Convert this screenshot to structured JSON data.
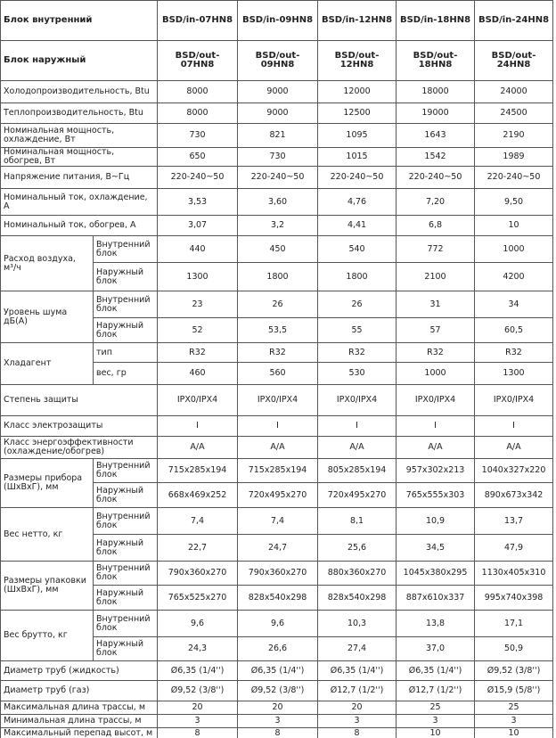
{
  "table": {
    "header": [
      {
        "label": "Блок внутренний",
        "models": [
          "BSD/in-07HN8",
          "BSD/in-09HN8",
          "BSD/in-12HN8",
          "BSD/in-18HN8",
          "BSD/in-24HN8"
        ]
      },
      {
        "label": "Блок наружный",
        "models": [
          "BSD/out-07HN8",
          "BSD/out-09HN8",
          "BSD/out-12HN8",
          "BSD/out-18HN8",
          "BSD/out-24HN8"
        ]
      }
    ],
    "rows": [
      {
        "label": "Холодопроизводительность,  Btu",
        "values": [
          "8000",
          "9000",
          "12000",
          "18000",
          "24000"
        ]
      },
      {
        "label": "Теплопроизводительность,  Btu",
        "values": [
          "8000",
          "9000",
          "12500",
          "19000",
          "24500"
        ]
      },
      {
        "label": "Номинальная мощность, охлаждение, Вт",
        "values": [
          "730",
          "821",
          "1095",
          "1643",
          "2190"
        ]
      },
      {
        "label": "Номинальная мощность, обогрев, Вт",
        "values": [
          "650",
          "730",
          "1015",
          "1542",
          "1989"
        ]
      },
      {
        "label": "Напряжение питания, В~Гц",
        "values": [
          "220-240~50",
          "220-240~50",
          "220-240~50",
          "220-240~50",
          "220-240~50"
        ]
      },
      {
        "label": "Номинальный ток, охлаждение, А",
        "values": [
          "3,53",
          "3,60",
          "4,76",
          "7,20",
          "9,50"
        ]
      },
      {
        "label": "Номинальный ток, обогрев, А",
        "values": [
          "3,07",
          "3,2",
          "4,41",
          "6,8",
          "10"
        ]
      },
      {
        "label": "Расход воздуха, м³/ч",
        "sub": [
          {
            "label": "Внутренний блок",
            "values": [
              "440",
              "450",
              "540",
              "772",
              "1000"
            ]
          },
          {
            "label": "Наружный блок",
            "values": [
              "1300",
              "1800",
              "1800",
              "2100",
              "4200"
            ]
          }
        ]
      },
      {
        "label": "Уровень шума дБ(А)",
        "sub": [
          {
            "label": "Внутренний блок",
            "values": [
              "23",
              "26",
              "26",
              "31",
              "34"
            ]
          },
          {
            "label": "Наружный блок",
            "values": [
              "52",
              "53,5",
              "55",
              "57",
              "60,5"
            ]
          }
        ]
      },
      {
        "label": "Хладагент",
        "sub": [
          {
            "label": "тип",
            "values": [
              "R32",
              "R32",
              "R32",
              "R32",
              "R32"
            ]
          },
          {
            "label": "вес, гр",
            "values": [
              "460",
              "560",
              "530",
              "1000",
              "1300"
            ]
          }
        ]
      },
      {
        "label": "Степень защиты",
        "values": [
          "IPX0/IPX4",
          "IPX0/IPX4",
          "IPX0/IPX4",
          "IPX0/IPX4",
          "IPX0/IPX4"
        ]
      },
      {
        "label": "Класс электрозащиты",
        "values": [
          "I",
          "I",
          "I",
          "I",
          "I"
        ]
      },
      {
        "label": "Класс энергоэффективности (охлаждение/обогрев)",
        "values": [
          "A/A",
          "A/A",
          "A/A",
          "A/A",
          "A/A"
        ]
      },
      {
        "label": "Размеры прибора (ШхВхГ), мм",
        "sub": [
          {
            "label": "Внутренний блок",
            "values": [
              "715x285x194",
              "715x285x194",
              "805x285x194",
              "957x302x213",
              "1040x327x220"
            ]
          },
          {
            "label": "Наружный блок",
            "values": [
              "668x469x252",
              "720x495x270",
              "720x495x270",
              "765x555x303",
              "890x673x342"
            ]
          }
        ]
      },
      {
        "label": "Вес нетто, кг",
        "sub": [
          {
            "label": "Внутренний блок",
            "values": [
              "7,4",
              "7,4",
              "8,1",
              "10,9",
              "13,7"
            ]
          },
          {
            "label": "Наружный блок",
            "values": [
              "22,7",
              "24,7",
              "25,6",
              "34,5",
              "47,9"
            ]
          }
        ]
      },
      {
        "label": "Размеры упаковки (ШхВхГ), мм",
        "sub": [
          {
            "label": "Внутренний блок",
            "values": [
              "790x360x270",
              "790x360x270",
              "880x360x270",
              "1045x380x295",
              "1130x405x310"
            ]
          },
          {
            "label": "Наружный блок",
            "values": [
              "765x525x270",
              "828x540x298",
              "828x540x298",
              "887x610x337",
              "995x740x398"
            ]
          }
        ]
      },
      {
        "label": "Вес брутто, кг",
        "sub": [
          {
            "label": "Внутренний блок",
            "values": [
              "9,6",
              "9,6",
              "10,3",
              "13,8",
              "17,1"
            ]
          },
          {
            "label": "Наружный блок",
            "values": [
              "24,3",
              "26,6",
              "27,4",
              "37,0",
              "50,9"
            ]
          }
        ]
      },
      {
        "label": "Диаметр труб (жидкость)",
        "values": [
          "Ø6,35 (1/4'')",
          "Ø6,35 (1/4'')",
          "Ø6,35 (1/4'')",
          "Ø6,35 (1/4'')",
          "Ø9,52 (3/8'')"
        ]
      },
      {
        "label": "Диаметр труб (газ)",
        "values": [
          "Ø9,52 (3/8'')",
          "Ø9,52 (3/8'')",
          "Ø12,7 (1/2'')",
          "Ø12,7 (1/2'')",
          "Ø15,9 (5/8'')"
        ]
      },
      {
        "label": "Максимальная длина трассы, м",
        "values": [
          "20",
          "20",
          "20",
          "25",
          "25"
        ]
      },
      {
        "label": "Минимальная длина трассы, м",
        "values": [
          "3",
          "3",
          "3",
          "3",
          "3"
        ]
      },
      {
        "label": "Максимальный перепад высот, м",
        "values": [
          "8",
          "8",
          "8",
          "10",
          "10"
        ]
      }
    ]
  }
}
